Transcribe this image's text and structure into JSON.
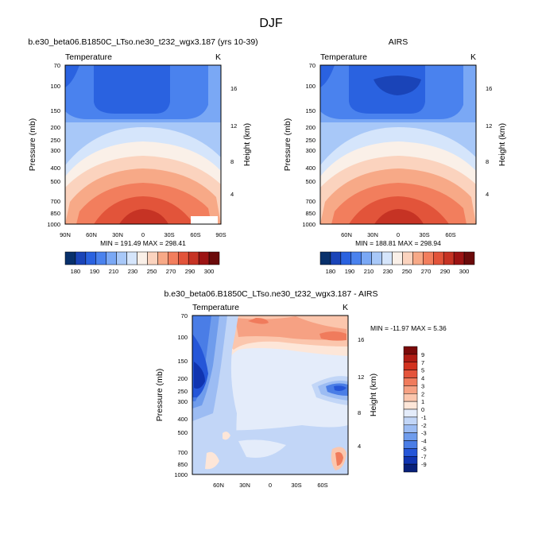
{
  "figure": {
    "title": "DJF"
  },
  "chart_data": [
    {
      "type": "heatmap",
      "title": "b.e30_beta06.B1850C_LTso.ne30_t232_wgx3.187 (yrs 10-39)",
      "left_label": "Temperature",
      "right_label": "K",
      "xlabel": "",
      "ylabel": "Pressure (mb)",
      "y2label": "Height (km)",
      "x_ticks": [
        "90N",
        "60N",
        "30N",
        "0",
        "30S",
        "60S",
        "90S"
      ],
      "y_ticks": [
        70,
        100,
        150,
        200,
        250,
        300,
        400,
        500,
        700,
        850,
        1000
      ],
      "height_ticks": [
        4,
        8,
        12,
        16
      ],
      "stats": "MIN = 191.49  MAX = 298.41",
      "min": 191.49,
      "max": 298.41
    },
    {
      "type": "heatmap",
      "title": "AIRS",
      "left_label": "Temperature",
      "right_label": "K",
      "xlabel": "",
      "ylabel": "Pressure (mb)",
      "y2label": "Height (km)",
      "x_ticks": [
        "60N",
        "30N",
        "0",
        "30S",
        "60S"
      ],
      "y_ticks": [
        70,
        100,
        150,
        200,
        250,
        300,
        400,
        500,
        700,
        850,
        1000
      ],
      "height_ticks": [
        4,
        8,
        12,
        16
      ],
      "stats": "MIN = 188.81  MAX = 298.94",
      "min": 188.81,
      "max": 298.94
    },
    {
      "type": "heatmap",
      "title": "b.e30_beta06.B1850C_LTso.ne30_t232_wgx3.187 - AIRS",
      "left_label": "Temperature",
      "right_label": "K",
      "xlabel": "",
      "ylabel": "Pressure (mb)",
      "y2label": "Height (km)",
      "x_ticks": [
        "60N",
        "30N",
        "0",
        "30S",
        "60S"
      ],
      "y_ticks": [
        70,
        100,
        150,
        200,
        250,
        300,
        400,
        500,
        700,
        850,
        1000
      ],
      "height_ticks": [
        4,
        8,
        12,
        16
      ],
      "stats": "MIN = -11.97  MAX =   5.36",
      "min": -11.97,
      "max": 5.36
    }
  ],
  "colorbars": {
    "absolute": {
      "labels": [
        "180",
        "190",
        "210",
        "230",
        "250",
        "270",
        "290",
        "300"
      ],
      "colors": [
        "#08306b",
        "#1a44b8",
        "#2a62e0",
        "#4a82ee",
        "#7aa8f5",
        "#a8c8f8",
        "#d5e5fb",
        "#faf0e8",
        "#fbd3be",
        "#f7a987",
        "#f27e5d",
        "#e2543a",
        "#c63324",
        "#9c1313",
        "#6b0a0a"
      ]
    },
    "difference": {
      "labels": [
        "9",
        "7",
        "5",
        "4",
        "3",
        "2",
        "1",
        "0",
        "-1",
        "-2",
        "-3",
        "-4",
        "-5",
        "-7",
        "-9"
      ],
      "colors": [
        "#7a0a0a",
        "#b01c14",
        "#d2321f",
        "#e4543b",
        "#f07b5c",
        "#f6a183",
        "#fbc6ad",
        "#fde6d8",
        "#e4ecfa",
        "#c2d6f7",
        "#9cbcf3",
        "#6f9cec",
        "#4a7de6",
        "#2556d8",
        "#1034b0",
        "#08207a"
      ]
    }
  }
}
